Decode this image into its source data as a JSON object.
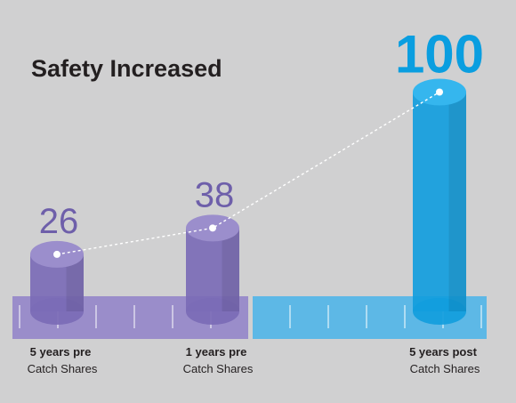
{
  "chart_data": {
    "type": "bar",
    "title": "Safety Increased",
    "categories": [
      {
        "bold": "5 years pre",
        "sub": "Catch Shares"
      },
      {
        "bold": "1 years pre",
        "sub": "Catch Shares"
      },
      {
        "bold": "5 years post",
        "sub": "Catch Shares"
      }
    ],
    "values": [
      26,
      38,
      100
    ],
    "value_labels": [
      "26",
      "38",
      "100"
    ],
    "colors": {
      "background": "#d0d0d1",
      "pre_bar": "#7b6bb6",
      "post_bar": "#129ddd",
      "pre_band": "#9a8dca",
      "post_band": "#5db8e6",
      "pre_label": "#6e5faa",
      "post_label": "#0a9ee0",
      "title": "#231f20"
    },
    "trend_line": "dashed-white",
    "legend": "none",
    "grid": false
  }
}
